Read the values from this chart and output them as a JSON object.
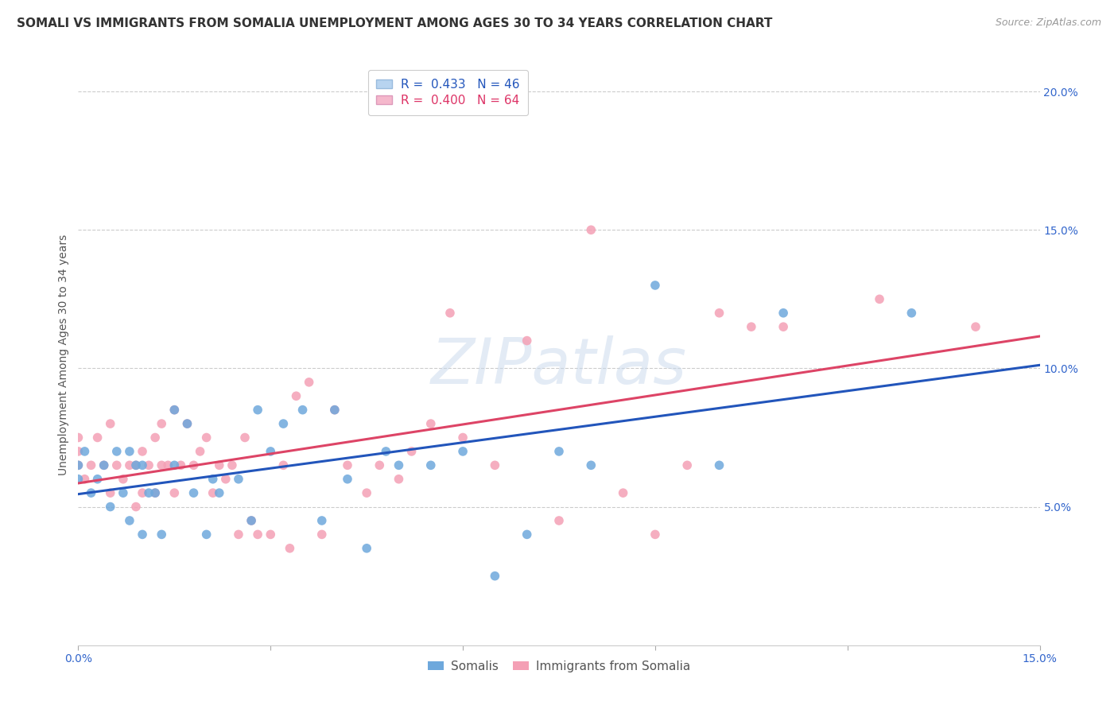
{
  "title": "SOMALI VS IMMIGRANTS FROM SOMALIA UNEMPLOYMENT AMONG AGES 30 TO 34 YEARS CORRELATION CHART",
  "source": "Source: ZipAtlas.com",
  "ylabel": "Unemployment Among Ages 30 to 34 years",
  "xlim": [
    0.0,
    0.15
  ],
  "ylim": [
    0.0,
    0.21
  ],
  "x_ticks": [
    0.0,
    0.03,
    0.06,
    0.09,
    0.12,
    0.15
  ],
  "y_ticks": [
    0.05,
    0.1,
    0.15,
    0.2
  ],
  "somali_R": 0.433,
  "somali_N": 46,
  "immigrants_R": 0.4,
  "immigrants_N": 64,
  "blue_color": "#6ea8dc",
  "pink_color": "#f4a0b5",
  "blue_line_color": "#2255bb",
  "pink_line_color": "#dd4466",
  "legend_blue_face": "#b8d4f0",
  "legend_pink_face": "#f5b8cc",
  "watermark": "ZIPatlas",
  "somali_x": [
    0.0,
    0.0,
    0.001,
    0.002,
    0.003,
    0.004,
    0.005,
    0.006,
    0.007,
    0.008,
    0.008,
    0.009,
    0.01,
    0.01,
    0.011,
    0.012,
    0.013,
    0.015,
    0.015,
    0.017,
    0.018,
    0.02,
    0.021,
    0.022,
    0.025,
    0.027,
    0.028,
    0.03,
    0.032,
    0.035,
    0.038,
    0.04,
    0.042,
    0.045,
    0.048,
    0.05,
    0.055,
    0.06,
    0.065,
    0.07,
    0.075,
    0.08,
    0.09,
    0.1,
    0.11,
    0.13
  ],
  "somali_y": [
    0.065,
    0.06,
    0.07,
    0.055,
    0.06,
    0.065,
    0.05,
    0.07,
    0.055,
    0.07,
    0.045,
    0.065,
    0.065,
    0.04,
    0.055,
    0.055,
    0.04,
    0.065,
    0.085,
    0.08,
    0.055,
    0.04,
    0.06,
    0.055,
    0.06,
    0.045,
    0.085,
    0.07,
    0.08,
    0.085,
    0.045,
    0.085,
    0.06,
    0.035,
    0.07,
    0.065,
    0.065,
    0.07,
    0.025,
    0.04,
    0.07,
    0.065,
    0.13,
    0.065,
    0.12,
    0.12
  ],
  "immigrants_x": [
    0.0,
    0.0,
    0.0,
    0.001,
    0.002,
    0.003,
    0.004,
    0.005,
    0.005,
    0.006,
    0.007,
    0.008,
    0.009,
    0.009,
    0.01,
    0.01,
    0.011,
    0.012,
    0.012,
    0.013,
    0.013,
    0.014,
    0.015,
    0.015,
    0.016,
    0.017,
    0.018,
    0.019,
    0.02,
    0.021,
    0.022,
    0.023,
    0.024,
    0.025,
    0.026,
    0.027,
    0.028,
    0.03,
    0.032,
    0.033,
    0.034,
    0.036,
    0.038,
    0.04,
    0.042,
    0.045,
    0.047,
    0.05,
    0.052,
    0.055,
    0.058,
    0.06,
    0.065,
    0.07,
    0.075,
    0.08,
    0.085,
    0.09,
    0.095,
    0.1,
    0.105,
    0.11,
    0.125,
    0.14
  ],
  "immigrants_y": [
    0.065,
    0.07,
    0.075,
    0.06,
    0.065,
    0.075,
    0.065,
    0.055,
    0.08,
    0.065,
    0.06,
    0.065,
    0.065,
    0.05,
    0.055,
    0.07,
    0.065,
    0.055,
    0.075,
    0.065,
    0.08,
    0.065,
    0.085,
    0.055,
    0.065,
    0.08,
    0.065,
    0.07,
    0.075,
    0.055,
    0.065,
    0.06,
    0.065,
    0.04,
    0.075,
    0.045,
    0.04,
    0.04,
    0.065,
    0.035,
    0.09,
    0.095,
    0.04,
    0.085,
    0.065,
    0.055,
    0.065,
    0.06,
    0.07,
    0.08,
    0.12,
    0.075,
    0.065,
    0.11,
    0.045,
    0.15,
    0.055,
    0.04,
    0.065,
    0.12,
    0.115,
    0.115,
    0.125,
    0.115
  ],
  "title_fontsize": 11,
  "axis_label_fontsize": 10,
  "tick_fontsize": 10,
  "source_fontsize": 9,
  "bg_color": "#ffffff",
  "grid_color": "#cccccc",
  "scatter_size": 70
}
